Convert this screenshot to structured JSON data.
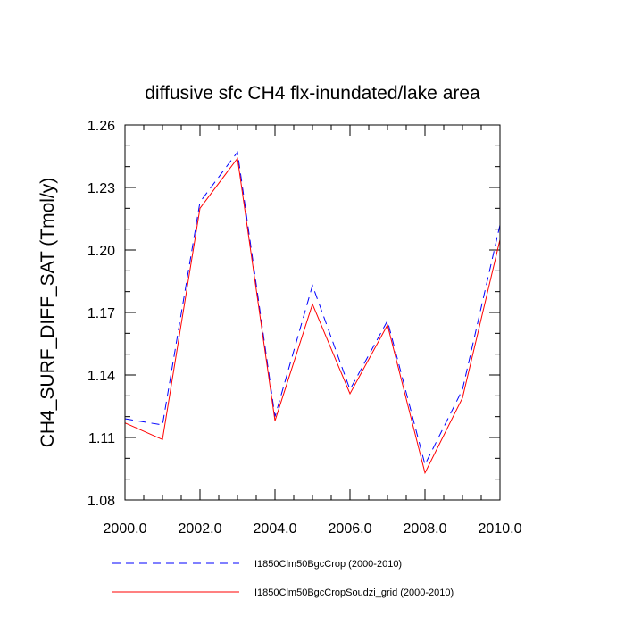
{
  "chart_data": {
    "type": "line",
    "title": "diffusive sfc CH4 flx-inundated/lake area",
    "xlabel": "",
    "ylabel": "CH4_SURF_DIFF_SAT  (Tmol/y)",
    "x": [
      2000,
      2001,
      2002,
      2003,
      2004,
      2005,
      2006,
      2007,
      2008,
      2009,
      2010
    ],
    "xlim": [
      2000,
      2010
    ],
    "ylim": [
      1.08,
      1.26
    ],
    "xticks": [
      2000,
      2002,
      2004,
      2006,
      2008,
      2010
    ],
    "xtick_labels": [
      "2000.0",
      "2002.0",
      "2004.0",
      "2006.0",
      "2008.0",
      "2010.0"
    ],
    "yticks": [
      1.08,
      1.11,
      1.14,
      1.17,
      1.2,
      1.23,
      1.26
    ],
    "ytick_labels": [
      "1.08",
      "1.11",
      "1.14",
      "1.17",
      "1.20",
      "1.23",
      "1.26"
    ],
    "grid": false,
    "legend_position": "bottom",
    "series": [
      {
        "name": "I1850Clm50BgcCrop (2000-2010)",
        "color": "#0000ff",
        "dash": "dashed",
        "values": [
          1.119,
          1.116,
          1.223,
          1.247,
          1.12,
          1.183,
          1.133,
          1.166,
          1.097,
          1.133,
          1.212
        ]
      },
      {
        "name": "I1850Clm50BgcCropSoudzi_grid (2000-2010)",
        "color": "#ff0000",
        "dash": "solid",
        "values": [
          1.117,
          1.109,
          1.22,
          1.244,
          1.118,
          1.174,
          1.131,
          1.164,
          1.093,
          1.129,
          1.205
        ]
      }
    ]
  }
}
